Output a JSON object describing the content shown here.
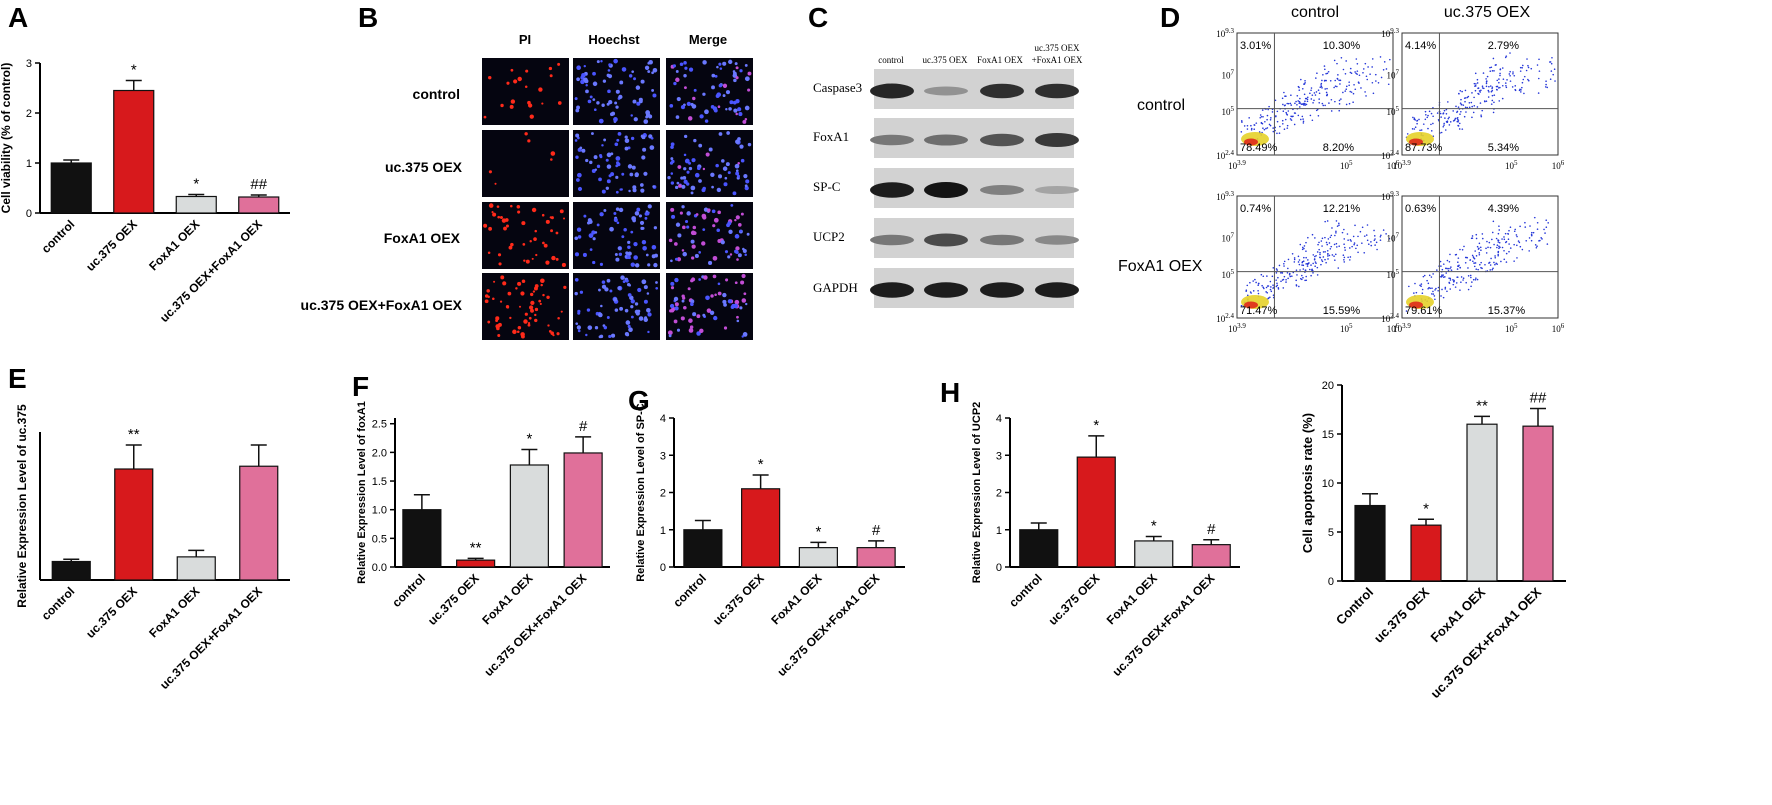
{
  "panel_labels": [
    "A",
    "B",
    "C",
    "D",
    "E",
    "F",
    "G",
    "H"
  ],
  "colors": {
    "control": "#111111",
    "uc375": "#d7191c",
    "foxa1": "#d9dcdc",
    "combo": "#e0709a",
    "flow_line": "#555555"
  },
  "panel_b": {
    "columns": [
      "PI",
      "Hoechst",
      "Merge"
    ],
    "rows": [
      "control",
      "uc.375 OEX",
      "FoxA1 OEX",
      "uc.375 OEX+FoxA1 OEX"
    ]
  },
  "panel_c": {
    "lanes": [
      "control",
      "uc.375 OEX",
      "FoxA1 OEX",
      "uc.375 OEX",
      "+FoxA1 OEX"
    ],
    "bands": [
      "Caspase3",
      "FoxA1",
      "SP-C",
      "UCP2",
      "GAPDH"
    ],
    "band_intensity": [
      [
        0.9,
        0.3,
        0.85,
        0.85
      ],
      [
        0.45,
        0.5,
        0.65,
        0.8
      ],
      [
        0.95,
        1.0,
        0.4,
        0.2
      ],
      [
        0.45,
        0.7,
        0.45,
        0.35
      ],
      [
        0.95,
        0.95,
        0.95,
        0.95
      ]
    ]
  },
  "panel_d": {
    "col_headers": [
      "control",
      "uc.375 OEX"
    ],
    "row_headers": [
      "control",
      "FoxA1 OEX"
    ],
    "y_ticks": [
      "10^9.3",
      "10^7",
      "10^5",
      "10^2.4"
    ],
    "x_ticks": [
      "10^3.9",
      "10^5",
      "10^6"
    ],
    "plots": [
      {
        "ul": "3.01%",
        "ur": "10.30%",
        "ll": "78.49%",
        "lr": "8.20%"
      },
      {
        "ul": "4.14%",
        "ur": "2.79%",
        "ll": "87.73%",
        "lr": "5.34%"
      },
      {
        "ul": "0.74%",
        "ur": "12.21%",
        "ll": "71.47%",
        "lr": "15.59%"
      },
      {
        "ul": "0.63%",
        "ur": "4.39%",
        "ll": "79.61%",
        "lr": "15.37%"
      }
    ]
  },
  "chart_data": [
    {
      "panel": "A",
      "type": "bar",
      "categories": [
        "control",
        "uc.375 OEX",
        "FoxA1 OEX",
        "uc.375 OEX+FoxA1 OEX"
      ],
      "values": [
        1.0,
        2.45,
        0.33,
        0.32
      ],
      "errors": [
        0.06,
        0.2,
        0.04,
        0.04
      ],
      "sig": [
        "",
        "*",
        "*",
        "##"
      ],
      "ylabel": "Cell viability (% of control)",
      "ylim": [
        0,
        3
      ],
      "yticks": [
        0,
        1,
        2,
        3
      ]
    },
    {
      "panel": "E",
      "type": "bar",
      "categories": [
        "control",
        "uc.375 OEX",
        "FoxA1 OEX",
        "uc.375 OEX+FoxA1 OEX"
      ],
      "values": [
        1.0,
        6.0,
        1.25,
        6.15
      ],
      "errors": [
        0.12,
        1.3,
        0.35,
        1.15
      ],
      "sig": [
        "",
        "**",
        "",
        ""
      ],
      "ylabel": "Relative Expression Level of uc.375",
      "ylim": [
        0,
        8
      ],
      "yticks": []
    },
    {
      "panel": "F",
      "type": "bar",
      "categories": [
        "control",
        "uc.375 OEX",
        "FoxA1 OEX",
        "uc.375 OEX+FoxA1 OEX"
      ],
      "values": [
        1.0,
        0.12,
        1.78,
        1.99
      ],
      "errors": [
        0.26,
        0.03,
        0.27,
        0.28
      ],
      "sig": [
        "",
        "**",
        "*",
        "#"
      ],
      "ylabel": "Relative Expression Level of foxA1",
      "ylim": [
        0,
        2.6
      ],
      "yticks": [
        0.0,
        0.5,
        1.0,
        1.5,
        2.0,
        2.5
      ]
    },
    {
      "panel": "G",
      "type": "bar",
      "categories": [
        "control",
        "uc.375 OEX",
        "FoxA1 OEX",
        "uc.375 OEX+FoxA1 OEX"
      ],
      "values": [
        1.0,
        2.1,
        0.52,
        0.52
      ],
      "errors": [
        0.25,
        0.37,
        0.14,
        0.18
      ],
      "sig": [
        "",
        "*",
        "*",
        "#"
      ],
      "ylabel": "Relative Expression Level of SP-C",
      "ylim": [
        0,
        4
      ],
      "yticks": [
        0,
        1,
        2,
        3,
        4
      ]
    },
    {
      "panel": "H",
      "type": "bar",
      "categories": [
        "control",
        "uc.375 OEX",
        "FoxA1 OEX",
        "uc.375 OEX+FoxA1 OEX"
      ],
      "values": [
        1.0,
        2.95,
        0.7,
        0.6
      ],
      "errors": [
        0.18,
        0.57,
        0.12,
        0.13
      ],
      "sig": [
        "",
        "*",
        "*",
        "#"
      ],
      "ylabel": "Relative Expression Level of UCP2",
      "ylim": [
        0,
        4
      ],
      "yticks": [
        0,
        1,
        2,
        3,
        4
      ]
    },
    {
      "panel": "",
      "type": "bar",
      "categories": [
        "Control",
        "uc.375 OEX",
        "FoxA1 OEX",
        "uc.375 OEX+FoxA1 OEX"
      ],
      "values": [
        7.7,
        5.7,
        16.0,
        15.8
      ],
      "errors": [
        1.2,
        0.6,
        0.8,
        1.8
      ],
      "sig": [
        "",
        "*",
        "**",
        "##"
      ],
      "ylabel": "Cell apoptosis rate (%)",
      "ylim": [
        0,
        20
      ],
      "yticks": [
        0,
        5,
        10,
        15,
        20
      ]
    }
  ]
}
